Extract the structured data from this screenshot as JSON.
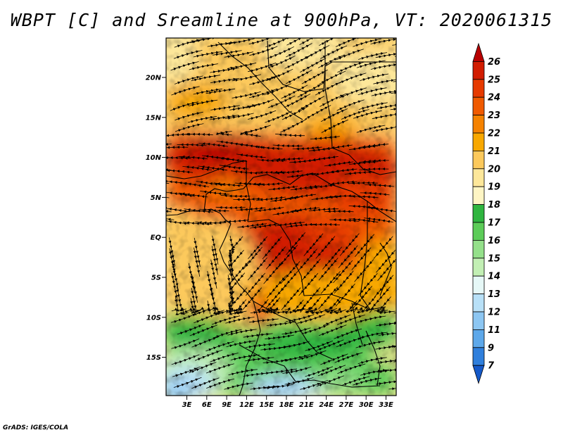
{
  "title": "WBPT [C] and Sreamline at 900hPa, VT: 2020061315",
  "footer": "GrADS: IGES/COLA",
  "map": {
    "lat_ticks": [
      "20N",
      "15N",
      "10N",
      "5N",
      "EQ",
      "5S",
      "10S",
      "15S"
    ],
    "lon_ticks": [
      "3E",
      "6E",
      "9E",
      "12E",
      "15E",
      "18E",
      "21E",
      "24E",
      "27E",
      "30E",
      "33E"
    ]
  },
  "colorbar": {
    "labels": [
      "26",
      "25",
      "24",
      "23",
      "22",
      "21",
      "20",
      "19",
      "18",
      "17",
      "16",
      "15",
      "14",
      "13",
      "12",
      "11",
      "9",
      "7"
    ],
    "colors": [
      "#b80000",
      "#d21c00",
      "#e63a00",
      "#f05a00",
      "#f58200",
      "#f8a800",
      "#fcc95c",
      "#fde79a",
      "#fef5c4",
      "#2fb53f",
      "#5ccc58",
      "#94e08a",
      "#c2efb4",
      "#e6f8f7",
      "#b8e0f7",
      "#8cc6f2",
      "#5da8ea",
      "#2f7fdc",
      "#1559c9"
    ]
  }
}
